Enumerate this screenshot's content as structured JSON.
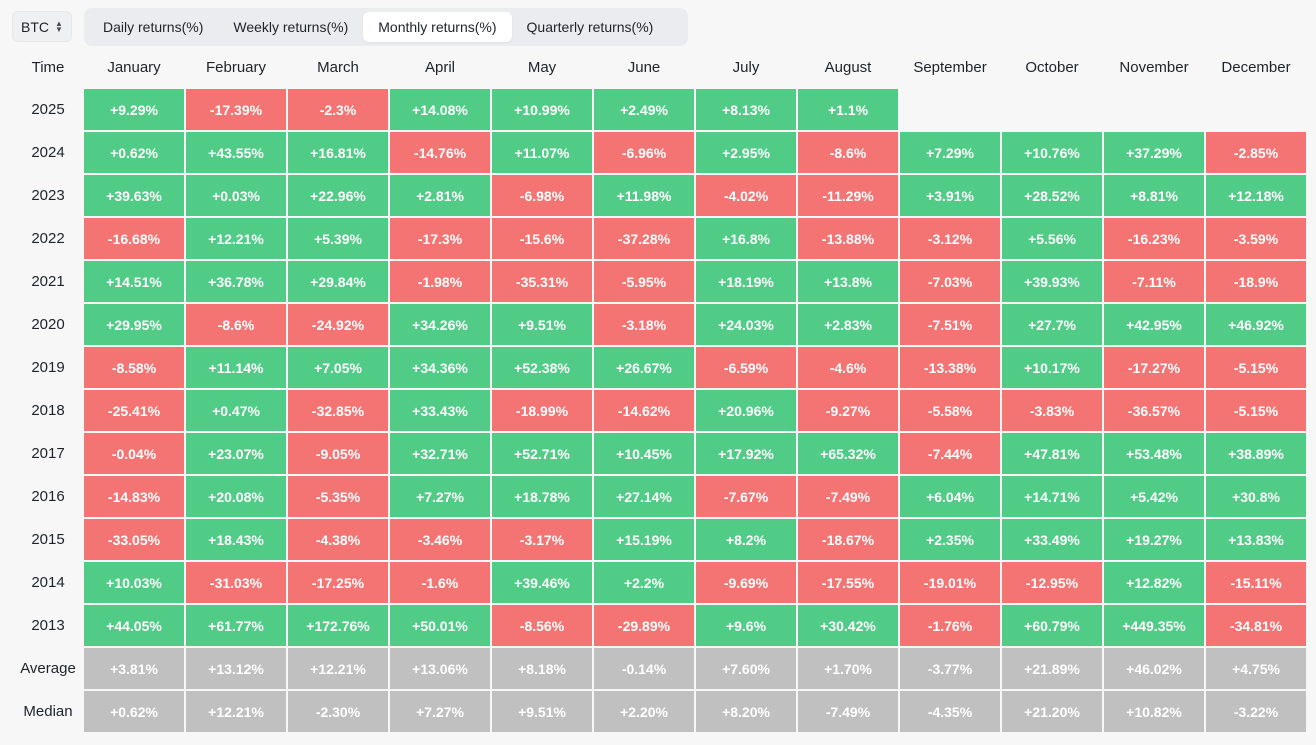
{
  "asset_selector": {
    "value": "BTC"
  },
  "tabs": [
    {
      "label": "Daily returns(%)",
      "active": false
    },
    {
      "label": "Weekly returns(%)",
      "active": false
    },
    {
      "label": "Monthly returns(%)",
      "active": true
    },
    {
      "label": "Quarterly returns(%)",
      "active": false
    }
  ],
  "colors": {
    "positive": "#51cc87",
    "negative": "#f47474",
    "summary": "#c0c0c0"
  },
  "table": {
    "headers": [
      "Time",
      "January",
      "February",
      "March",
      "April",
      "May",
      "June",
      "July",
      "August",
      "September",
      "October",
      "November",
      "December"
    ],
    "rows": [
      [
        "2025",
        "+9.29%",
        "-17.39%",
        "-2.3%",
        "+14.08%",
        "+10.99%",
        "+2.49%",
        "+8.13%",
        "+1.1%",
        "",
        "",
        "",
        ""
      ],
      [
        "2024",
        "+0.62%",
        "+43.55%",
        "+16.81%",
        "-14.76%",
        "+11.07%",
        "-6.96%",
        "+2.95%",
        "-8.6%",
        "+7.29%",
        "+10.76%",
        "+37.29%",
        "-2.85%"
      ],
      [
        "2023",
        "+39.63%",
        "+0.03%",
        "+22.96%",
        "+2.81%",
        "-6.98%",
        "+11.98%",
        "-4.02%",
        "-11.29%",
        "+3.91%",
        "+28.52%",
        "+8.81%",
        "+12.18%"
      ],
      [
        "2022",
        "-16.68%",
        "+12.21%",
        "+5.39%",
        "-17.3%",
        "-15.6%",
        "-37.28%",
        "+16.8%",
        "-13.88%",
        "-3.12%",
        "+5.56%",
        "-16.23%",
        "-3.59%"
      ],
      [
        "2021",
        "+14.51%",
        "+36.78%",
        "+29.84%",
        "-1.98%",
        "-35.31%",
        "-5.95%",
        "+18.19%",
        "+13.8%",
        "-7.03%",
        "+39.93%",
        "-7.11%",
        "-18.9%"
      ],
      [
        "2020",
        "+29.95%",
        "-8.6%",
        "-24.92%",
        "+34.26%",
        "+9.51%",
        "-3.18%",
        "+24.03%",
        "+2.83%",
        "-7.51%",
        "+27.7%",
        "+42.95%",
        "+46.92%"
      ],
      [
        "2019",
        "-8.58%",
        "+11.14%",
        "+7.05%",
        "+34.36%",
        "+52.38%",
        "+26.67%",
        "-6.59%",
        "-4.6%",
        "-13.38%",
        "+10.17%",
        "-17.27%",
        "-5.15%"
      ],
      [
        "2018",
        "-25.41%",
        "+0.47%",
        "-32.85%",
        "+33.43%",
        "-18.99%",
        "-14.62%",
        "+20.96%",
        "-9.27%",
        "-5.58%",
        "-3.83%",
        "-36.57%",
        "-5.15%"
      ],
      [
        "2017",
        "-0.04%",
        "+23.07%",
        "-9.05%",
        "+32.71%",
        "+52.71%",
        "+10.45%",
        "+17.92%",
        "+65.32%",
        "-7.44%",
        "+47.81%",
        "+53.48%",
        "+38.89%"
      ],
      [
        "2016",
        "-14.83%",
        "+20.08%",
        "-5.35%",
        "+7.27%",
        "+18.78%",
        "+27.14%",
        "-7.67%",
        "-7.49%",
        "+6.04%",
        "+14.71%",
        "+5.42%",
        "+30.8%"
      ],
      [
        "2015",
        "-33.05%",
        "+18.43%",
        "-4.38%",
        "-3.46%",
        "-3.17%",
        "+15.19%",
        "+8.2%",
        "-18.67%",
        "+2.35%",
        "+33.49%",
        "+19.27%",
        "+13.83%"
      ],
      [
        "2014",
        "+10.03%",
        "-31.03%",
        "-17.25%",
        "-1.6%",
        "+39.46%",
        "+2.2%",
        "-9.69%",
        "-17.55%",
        "-19.01%",
        "-12.95%",
        "+12.82%",
        "-15.11%"
      ],
      [
        "2013",
        "+44.05%",
        "+61.77%",
        "+172.76%",
        "+50.01%",
        "-8.56%",
        "-29.89%",
        "+9.6%",
        "+30.42%",
        "-1.76%",
        "+60.79%",
        "+449.35%",
        "-34.81%"
      ]
    ],
    "summary": [
      [
        "Average",
        "+3.81%",
        "+13.12%",
        "+12.21%",
        "+13.06%",
        "+8.18%",
        "-0.14%",
        "+7.60%",
        "+1.70%",
        "-3.77%",
        "+21.89%",
        "+46.02%",
        "+4.75%"
      ],
      [
        "Median",
        "+0.62%",
        "+12.21%",
        "-2.30%",
        "+7.27%",
        "+9.51%",
        "+2.20%",
        "+8.20%",
        "-7.49%",
        "-4.35%",
        "+21.20%",
        "+10.82%",
        "-3.22%"
      ]
    ]
  }
}
